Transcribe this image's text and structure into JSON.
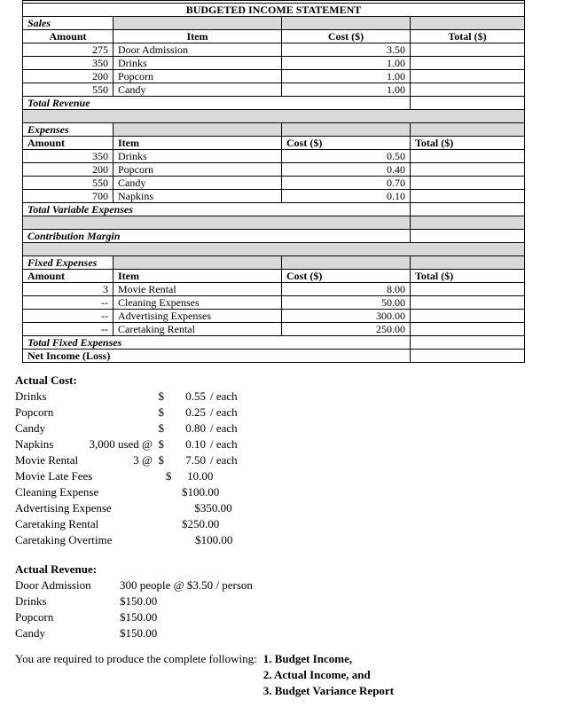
{
  "colors": {
    "table_shade": "#d9d9d9",
    "border": "#000000",
    "background": "#ffffff"
  },
  "budget_table": {
    "rows": [
      {
        "type": "partial"
      },
      {
        "type": "title",
        "text": "BUDGETED INCOME STATEMENT"
      },
      {
        "type": "section",
        "text": "Sales"
      },
      {
        "type": "header",
        "align": "center",
        "cells": [
          "Amount",
          "Item",
          "Cost ($)",
          "Total ($)"
        ]
      },
      {
        "type": "data",
        "cells": [
          "275",
          "Door Admission",
          "3.50",
          ""
        ]
      },
      {
        "type": "data",
        "cells": [
          "350",
          "Drinks",
          "1.00",
          ""
        ]
      },
      {
        "type": "data",
        "cells": [
          "200",
          "Popcorn",
          "1.00",
          ""
        ]
      },
      {
        "type": "data",
        "cells": [
          "550",
          "Candy",
          "1.00",
          ""
        ]
      },
      {
        "type": "summary",
        "text": "Total Revenue",
        "italic": true
      },
      {
        "type": "spacer",
        "split": false
      },
      {
        "type": "section",
        "text": "Expenses"
      },
      {
        "type": "header",
        "align": "left",
        "cells": [
          "Amount",
          "Item",
          "Cost ($)",
          "Total ($)"
        ]
      },
      {
        "type": "data",
        "cells": [
          "350",
          "Drinks",
          "0.50",
          ""
        ]
      },
      {
        "type": "data",
        "cells": [
          "200",
          "Popcorn",
          "0.40",
          ""
        ]
      },
      {
        "type": "data",
        "cells": [
          "550",
          "Candy",
          "0.70",
          ""
        ]
      },
      {
        "type": "data",
        "cells": [
          "700",
          "Napkins",
          "0.10",
          ""
        ]
      },
      {
        "type": "summary",
        "text": "Total Variable Expenses",
        "italic": true
      },
      {
        "type": "spacer",
        "split": true
      },
      {
        "type": "summary",
        "text": "Contribution Margin",
        "italic": true
      },
      {
        "type": "spacer",
        "split": false
      },
      {
        "type": "section",
        "text": "Fixed Expenses"
      },
      {
        "type": "header",
        "align": "left",
        "cells": [
          "Amount",
          "Item",
          "Cost ($)",
          "Total ($)"
        ]
      },
      {
        "type": "data",
        "cells": [
          "3",
          "Movie Rental",
          "8.00",
          ""
        ]
      },
      {
        "type": "data",
        "cells": [
          "--",
          "Cleaning Expenses",
          "50.00",
          ""
        ]
      },
      {
        "type": "data",
        "cells": [
          "--",
          "Advertising Expenses",
          "300.00",
          ""
        ]
      },
      {
        "type": "data",
        "cells": [
          "--",
          "Caretaking Rental",
          "250.00",
          ""
        ]
      },
      {
        "type": "summary",
        "text": "Total Fixed Expenses",
        "italic": true
      },
      {
        "type": "summary",
        "text": "Net Income (Loss)",
        "italic": false
      }
    ]
  },
  "actual_cost": {
    "heading": "Actual Cost:",
    "rows": [
      {
        "label": "Drinks",
        "qty": "",
        "cur": "$",
        "amount": "0.55",
        "suffix": "/ each"
      },
      {
        "label": "Popcorn",
        "qty": "",
        "cur": "$",
        "amount": "0.25",
        "suffix": "/ each"
      },
      {
        "label": "Candy",
        "qty": "",
        "cur": "$",
        "amount": "0.80",
        "suffix": "/ each"
      },
      {
        "label": "Napkins",
        "qty": "3,000 used @",
        "cur": "$",
        "amount": "0.10",
        "suffix": "/ each"
      },
      {
        "label": "Movie Rental",
        "qty": "3 @",
        "cur": "$",
        "amount": "7.50",
        "suffix": "/ each"
      },
      {
        "label": "Movie Late Fees",
        "qty": "",
        "cur": "$",
        "amount": "10.00",
        "suffix": ""
      },
      {
        "label": "Cleaning Expense",
        "qty": "",
        "cur": "",
        "amount": "$100.00",
        "suffix": ""
      },
      {
        "label": "Advertising Expense",
        "qty": "",
        "cur": "",
        "amount": "$350.00",
        "suffix": ""
      },
      {
        "label": "Caretaking Rental",
        "qty": "",
        "cur": "",
        "amount": "$250.00",
        "suffix": ""
      },
      {
        "label": "Caretaking Overtime",
        "qty": "",
        "cur": "",
        "amount": "$100.00",
        "suffix": ""
      }
    ]
  },
  "actual_revenue": {
    "heading": "Actual Revenue:",
    "rows": [
      {
        "label": "Door Admission",
        "value": "300 people @ $3.50 / person"
      },
      {
        "label": "Drinks",
        "value": "$150.00"
      },
      {
        "label": "Popcorn",
        "value": "$150.00"
      },
      {
        "label": "Candy",
        "value": "$150.00"
      }
    ]
  },
  "requirements": {
    "intro": "You are required to produce the complete following:",
    "items": [
      "1. Budget Income,",
      "2. Actual Income, and",
      "3. Budget Variance Report"
    ]
  }
}
